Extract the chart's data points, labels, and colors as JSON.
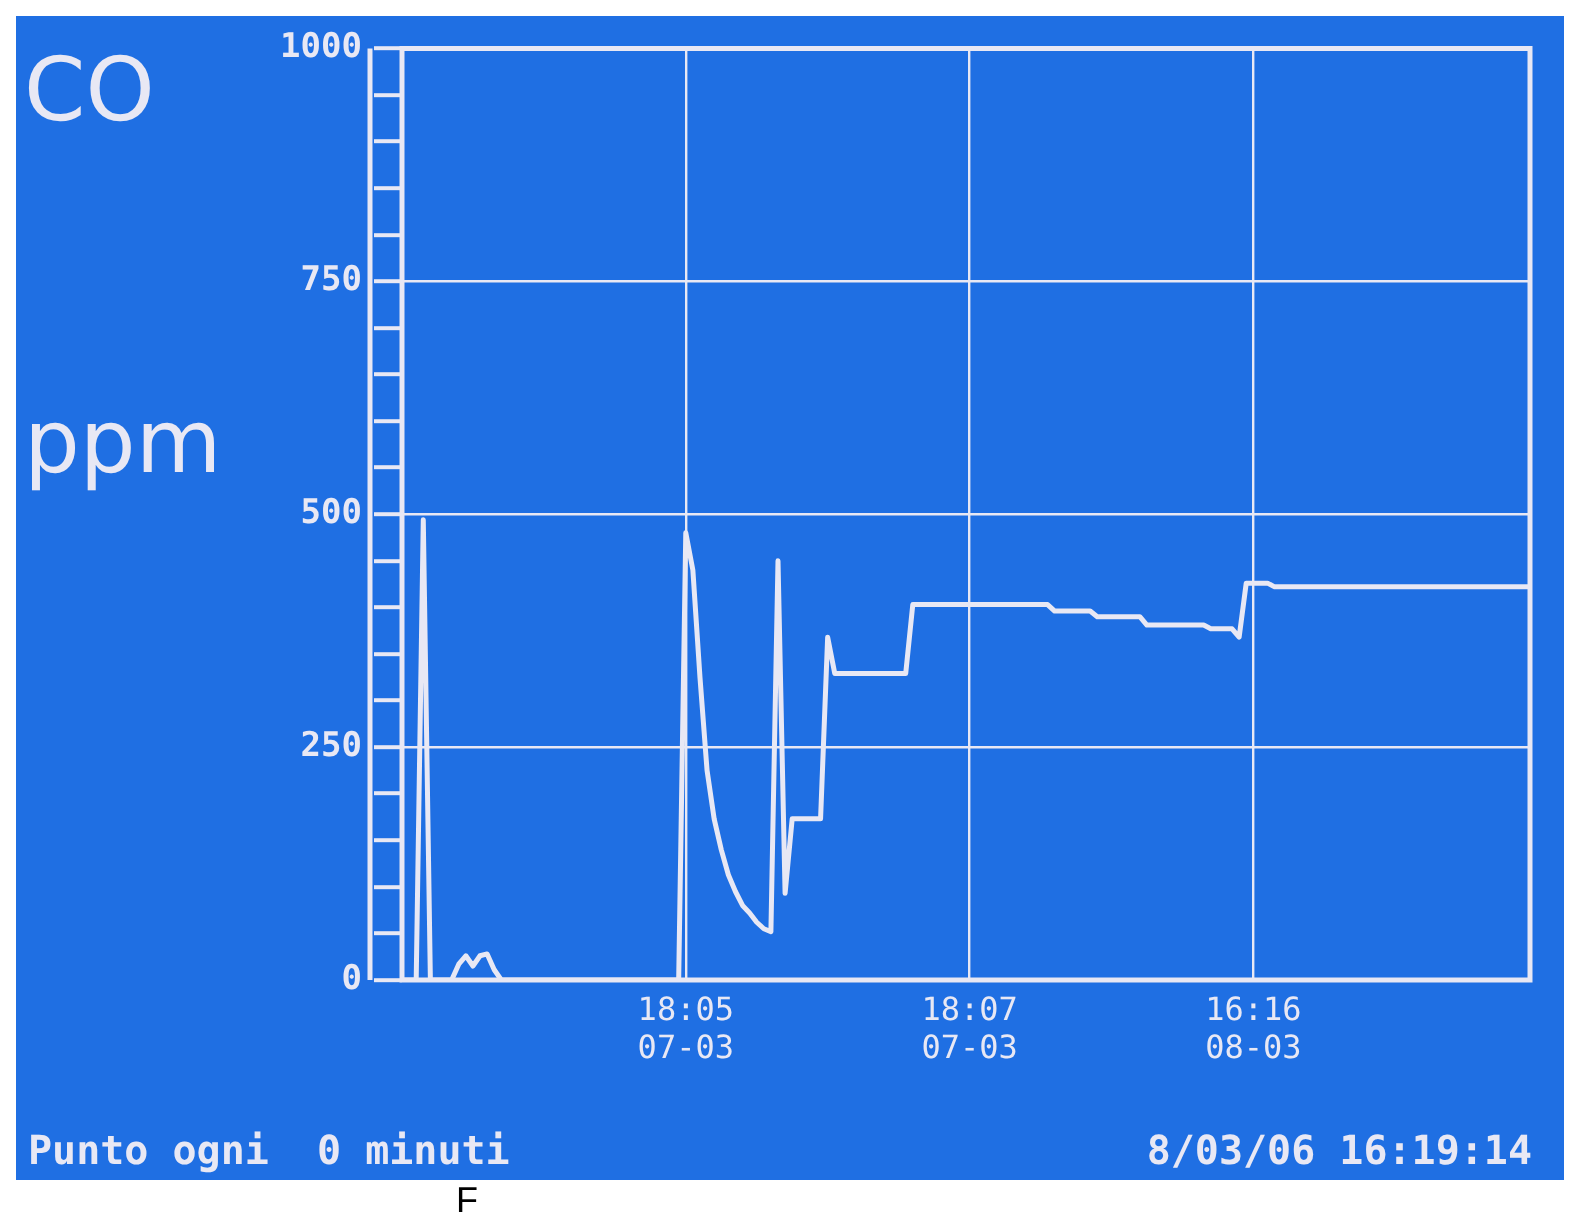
{
  "chart_data": {
    "type": "line",
    "title": "CO",
    "ylabel": "ppm",
    "annotations": [
      "Punto ogni  0 minuti",
      "8/03/06 16:19:14",
      "F"
    ],
    "categories": [
      null,
      null,
      null,
      null,
      null,
      null,
      null,
      null,
      null,
      null,
      null,
      null,
      null,
      null,
      null,
      null,
      null,
      null,
      null,
      null,
      null,
      null,
      null,
      null,
      null,
      null,
      null,
      null,
      null,
      null,
      null,
      null,
      null,
      null,
      null,
      null,
      null,
      null,
      null,
      null,
      "18:05 07-03",
      null,
      null,
      null,
      null,
      null,
      null,
      null,
      null,
      null,
      null,
      null,
      null,
      null,
      null,
      null,
      null,
      null,
      null,
      null,
      null,
      null,
      null,
      null,
      null,
      null,
      null,
      null,
      null,
      null,
      null,
      null,
      null,
      null,
      null,
      null,
      null,
      null,
      null,
      null,
      "18:07 07-03",
      null,
      null,
      null,
      null,
      null,
      null,
      null,
      null,
      null,
      null,
      null,
      null,
      null,
      null,
      null,
      null,
      null,
      null,
      null,
      null,
      null,
      null,
      null,
      null,
      null,
      null,
      null,
      null,
      null,
      null,
      null,
      null,
      null,
      null,
      null,
      null,
      null,
      null,
      null,
      "16:16 08-03",
      null,
      null,
      null,
      null,
      null,
      null,
      null,
      null,
      null,
      null,
      null,
      null,
      null,
      null,
      null,
      null,
      null,
      null,
      null,
      null,
      null,
      null,
      null,
      null,
      null,
      null,
      null,
      null,
      null,
      null,
      null,
      null,
      null,
      null,
      null,
      null,
      null,
      null,
      null
    ],
    "series": [
      {
        "color": "#e8e8f4",
        "values": [
          0,
          0,
          0,
          494,
          0,
          0,
          0,
          0,
          17,
          26,
          15,
          26,
          28,
          11,
          0,
          0,
          0,
          0,
          0,
          0,
          0,
          0,
          0,
          0,
          0,
          0,
          0,
          0,
          0,
          0,
          0,
          0,
          0,
          0,
          0,
          0,
          0,
          0,
          0,
          0,
          480,
          440,
          325,
          225,
          173,
          140,
          113,
          95,
          80,
          72,
          62,
          55,
          52,
          450,
          93,
          173,
          173,
          173,
          173,
          173,
          368,
          329,
          329,
          329,
          329,
          329,
          329,
          329,
          329,
          329,
          329,
          329,
          403,
          403,
          403,
          403,
          403,
          403,
          403,
          403,
          403,
          403,
          403,
          403,
          403,
          403,
          403,
          403,
          403,
          403,
          403,
          403,
          396,
          396,
          396,
          396,
          396,
          396,
          390,
          390,
          390,
          390,
          390,
          390,
          390,
          381,
          381,
          381,
          381,
          381,
          381,
          381,
          381,
          381,
          377,
          377,
          377,
          377,
          368,
          426,
          426,
          426,
          426,
          422,
          422,
          422,
          422,
          422,
          422,
          422,
          422,
          422,
          422,
          422,
          422,
          422,
          422,
          422,
          422,
          422,
          422,
          422,
          422,
          422,
          422,
          422,
          422,
          422,
          422,
          422,
          422,
          422,
          422,
          422,
          422,
          422,
          422,
          422,
          422,
          422
        ]
      }
    ],
    "ylim": [
      0,
      1000
    ],
    "yticks": [
      0,
      {
        "value": 50,
        "label": null
      },
      {
        "value": 100,
        "label": null
      },
      {
        "value": 150,
        "label": null
      },
      {
        "value": 200,
        "label": null
      },
      250,
      {
        "value": 300,
        "label": null
      },
      {
        "value": 350,
        "label": null
      },
      {
        "value": 400,
        "label": null
      },
      {
        "value": 450,
        "label": null
      },
      500,
      {
        "value": 550,
        "label": null
      },
      {
        "value": 600,
        "label": null
      },
      {
        "value": 650,
        "label": null
      },
      {
        "value": 700,
        "label": null
      },
      750,
      {
        "value": 800,
        "label": null
      },
      {
        "value": 850,
        "label": null
      },
      {
        "value": 900,
        "label": null
      },
      {
        "value": 950,
        "label": null
      },
      1000
    ],
    "grid": true,
    "legend": false,
    "marker": "none",
    "line_style": "solid"
  }
}
